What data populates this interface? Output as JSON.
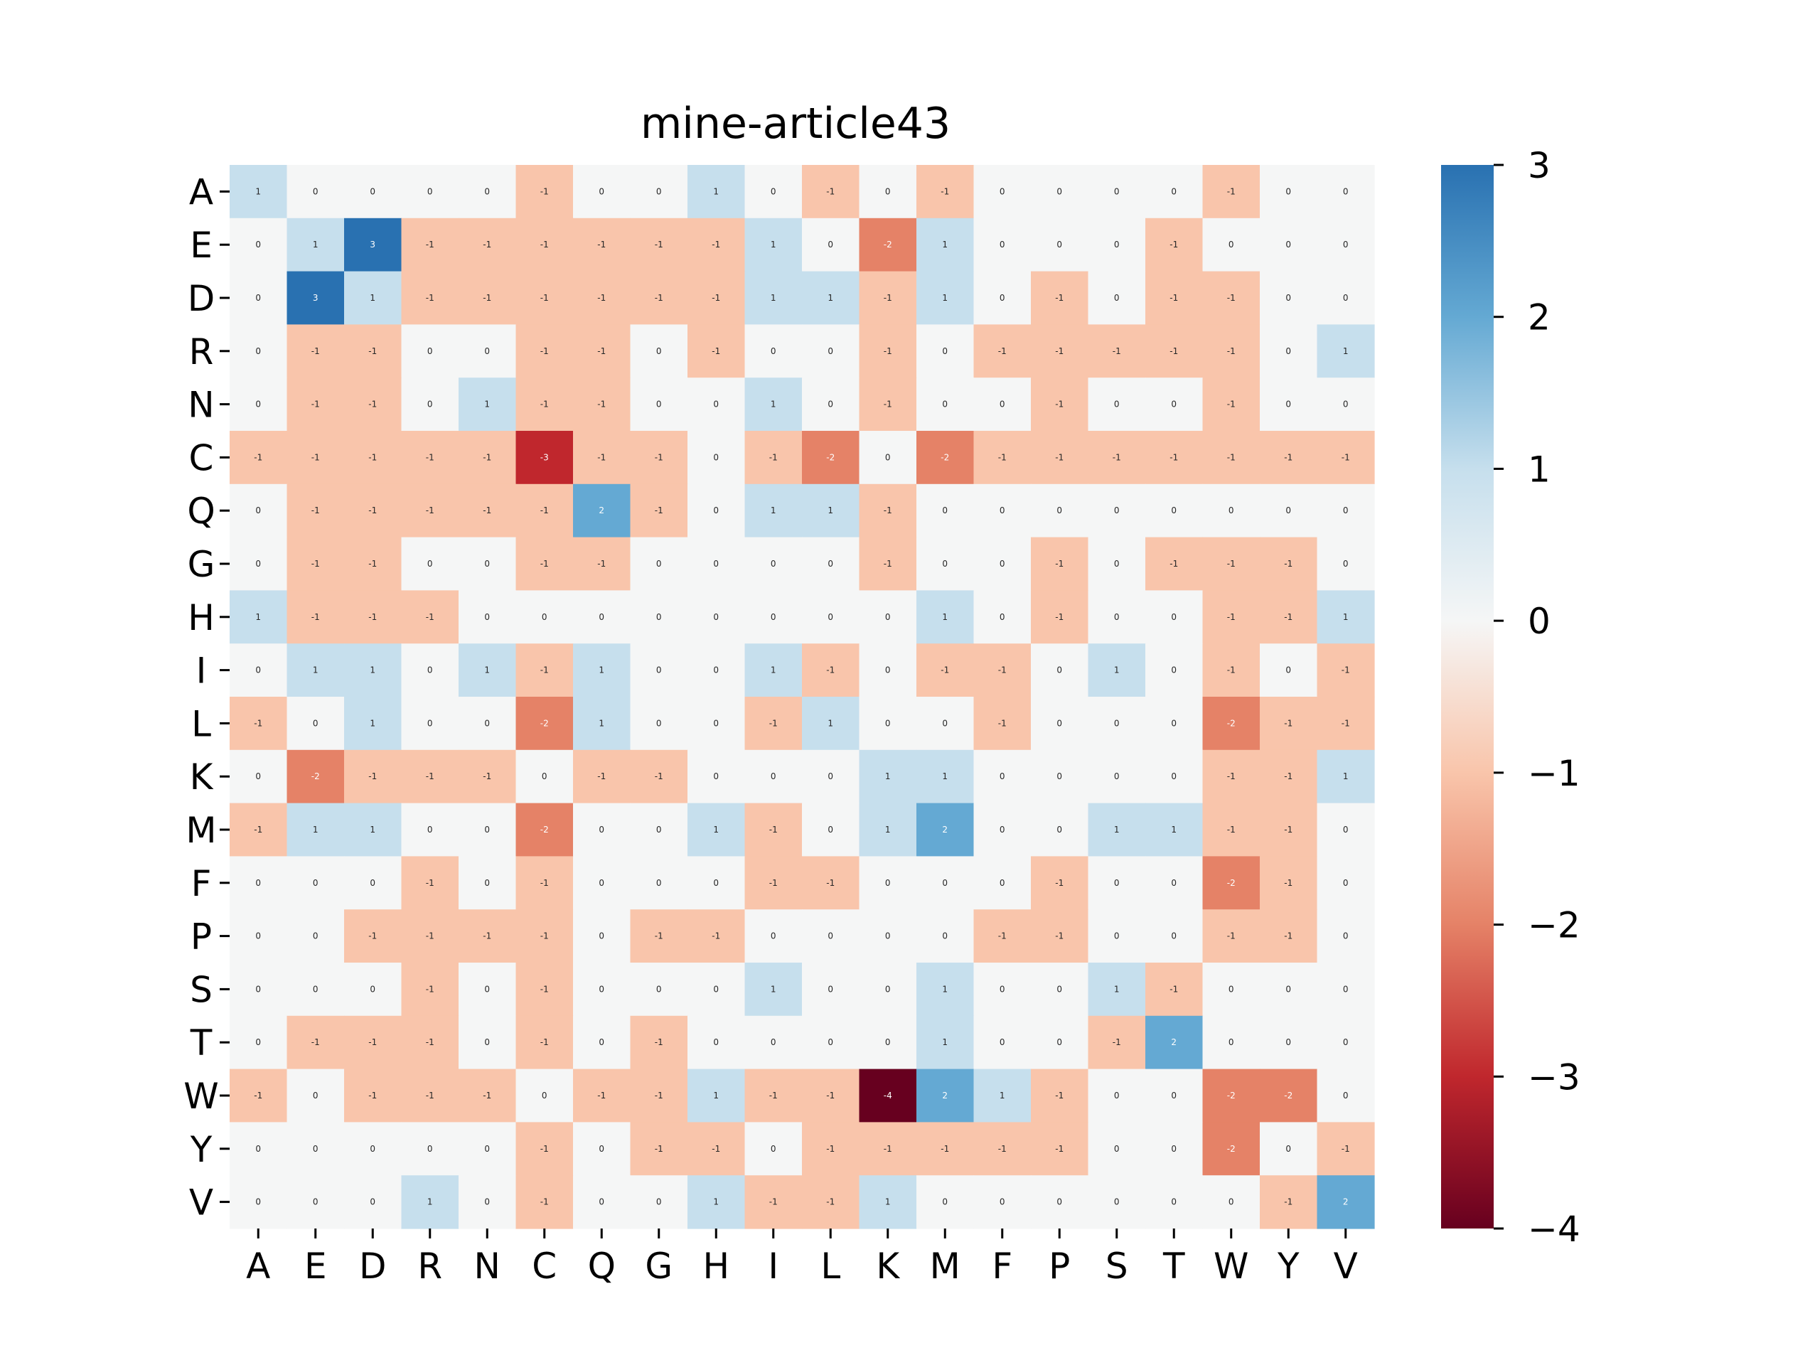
{
  "chart_data": {
    "type": "heatmap",
    "title": "mine-article43",
    "xlabel": "",
    "ylabel": "",
    "x_categories": [
      "A",
      "E",
      "D",
      "R",
      "N",
      "C",
      "Q",
      "G",
      "H",
      "I",
      "L",
      "K",
      "M",
      "F",
      "P",
      "S",
      "T",
      "W",
      "Y",
      "V"
    ],
    "y_categories": [
      "A",
      "E",
      "D",
      "R",
      "N",
      "C",
      "Q",
      "G",
      "H",
      "I",
      "L",
      "K",
      "M",
      "F",
      "P",
      "S",
      "T",
      "W",
      "Y",
      "V"
    ],
    "values": [
      [
        1,
        0,
        0,
        0,
        0,
        -1,
        0,
        0,
        1,
        0,
        -1,
        0,
        -1,
        0,
        0,
        0,
        0,
        -1,
        0,
        0
      ],
      [
        0,
        1,
        3,
        -1,
        -1,
        -1,
        -1,
        -1,
        -1,
        1,
        0,
        -2,
        1,
        0,
        0,
        0,
        -1,
        0,
        0,
        0
      ],
      [
        0,
        3,
        1,
        -1,
        -1,
        -1,
        -1,
        -1,
        -1,
        1,
        1,
        -1,
        1,
        0,
        -1,
        0,
        -1,
        -1,
        0,
        0
      ],
      [
        0,
        -1,
        -1,
        0,
        0,
        -1,
        -1,
        0,
        -1,
        0,
        0,
        -1,
        0,
        -1,
        -1,
        -1,
        -1,
        -1,
        0,
        1
      ],
      [
        0,
        -1,
        -1,
        0,
        1,
        -1,
        -1,
        0,
        0,
        1,
        0,
        -1,
        0,
        0,
        -1,
        0,
        0,
        -1,
        0,
        0
      ],
      [
        -1,
        -1,
        -1,
        -1,
        -1,
        -3,
        -1,
        -1,
        0,
        -1,
        -2,
        0,
        -2,
        -1,
        -1,
        -1,
        -1,
        -1,
        -1,
        -1
      ],
      [
        0,
        -1,
        -1,
        -1,
        -1,
        -1,
        2,
        -1,
        0,
        1,
        1,
        -1,
        0,
        0,
        0,
        0,
        0,
        0,
        0,
        0
      ],
      [
        0,
        -1,
        -1,
        0,
        0,
        -1,
        -1,
        0,
        0,
        0,
        0,
        -1,
        0,
        0,
        -1,
        0,
        -1,
        -1,
        -1,
        0
      ],
      [
        1,
        -1,
        -1,
        -1,
        0,
        0,
        0,
        0,
        0,
        0,
        0,
        0,
        1,
        0,
        -1,
        0,
        0,
        -1,
        -1,
        1
      ],
      [
        0,
        1,
        1,
        0,
        1,
        -1,
        1,
        0,
        0,
        1,
        -1,
        0,
        -1,
        -1,
        0,
        1,
        0,
        -1,
        0,
        -1
      ],
      [
        -1,
        0,
        1,
        0,
        0,
        -2,
        1,
        0,
        0,
        -1,
        1,
        0,
        0,
        -1,
        0,
        0,
        0,
        -2,
        -1,
        -1
      ],
      [
        0,
        -2,
        -1,
        -1,
        -1,
        0,
        -1,
        -1,
        0,
        0,
        0,
        1,
        1,
        0,
        0,
        0,
        0,
        -1,
        -1,
        1
      ],
      [
        -1,
        1,
        1,
        0,
        0,
        -2,
        0,
        0,
        1,
        -1,
        0,
        1,
        2,
        0,
        0,
        1,
        1,
        -1,
        -1,
        0
      ],
      [
        0,
        0,
        0,
        -1,
        0,
        -1,
        0,
        0,
        0,
        -1,
        -1,
        0,
        0,
        0,
        -1,
        0,
        0,
        -2,
        -1,
        0
      ],
      [
        0,
        0,
        -1,
        -1,
        -1,
        -1,
        0,
        -1,
        -1,
        0,
        0,
        0,
        0,
        -1,
        -1,
        0,
        0,
        -1,
        -1,
        0
      ],
      [
        0,
        0,
        0,
        -1,
        0,
        -1,
        0,
        0,
        0,
        1,
        0,
        0,
        1,
        0,
        0,
        1,
        -1,
        0,
        0,
        0
      ],
      [
        0,
        -1,
        -1,
        -1,
        0,
        -1,
        0,
        -1,
        0,
        0,
        0,
        0,
        1,
        0,
        0,
        -1,
        2,
        0,
        0,
        0
      ],
      [
        -1,
        0,
        -1,
        -1,
        -1,
        0,
        -1,
        -1,
        1,
        -1,
        -1,
        -4,
        2,
        1,
        -1,
        0,
        0,
        -2,
        -2,
        0
      ],
      [
        0,
        0,
        0,
        0,
        0,
        -1,
        0,
        -1,
        -1,
        0,
        -1,
        -1,
        -1,
        -1,
        -1,
        0,
        0,
        -2,
        0,
        -1
      ],
      [
        0,
        0,
        0,
        1,
        0,
        -1,
        0,
        0,
        1,
        -1,
        -1,
        1,
        0,
        0,
        0,
        0,
        0,
        0,
        -1,
        2
      ]
    ],
    "vmin": -4,
    "vmax": 3,
    "colormap": "RdBu",
    "colorbar_ticks": [
      "3",
      "2",
      "1",
      "0",
      "−1",
      "−2",
      "−3",
      "−4"
    ],
    "colors": {
      "-4": "#67001f",
      "-3": "#c0272d",
      "-2": "#e58267",
      "-1": "#f9c5ab",
      "0": "#f5f6f6",
      "1": "#c6dfed",
      "2": "#64a9d3",
      "3": "#2971b1"
    }
  }
}
